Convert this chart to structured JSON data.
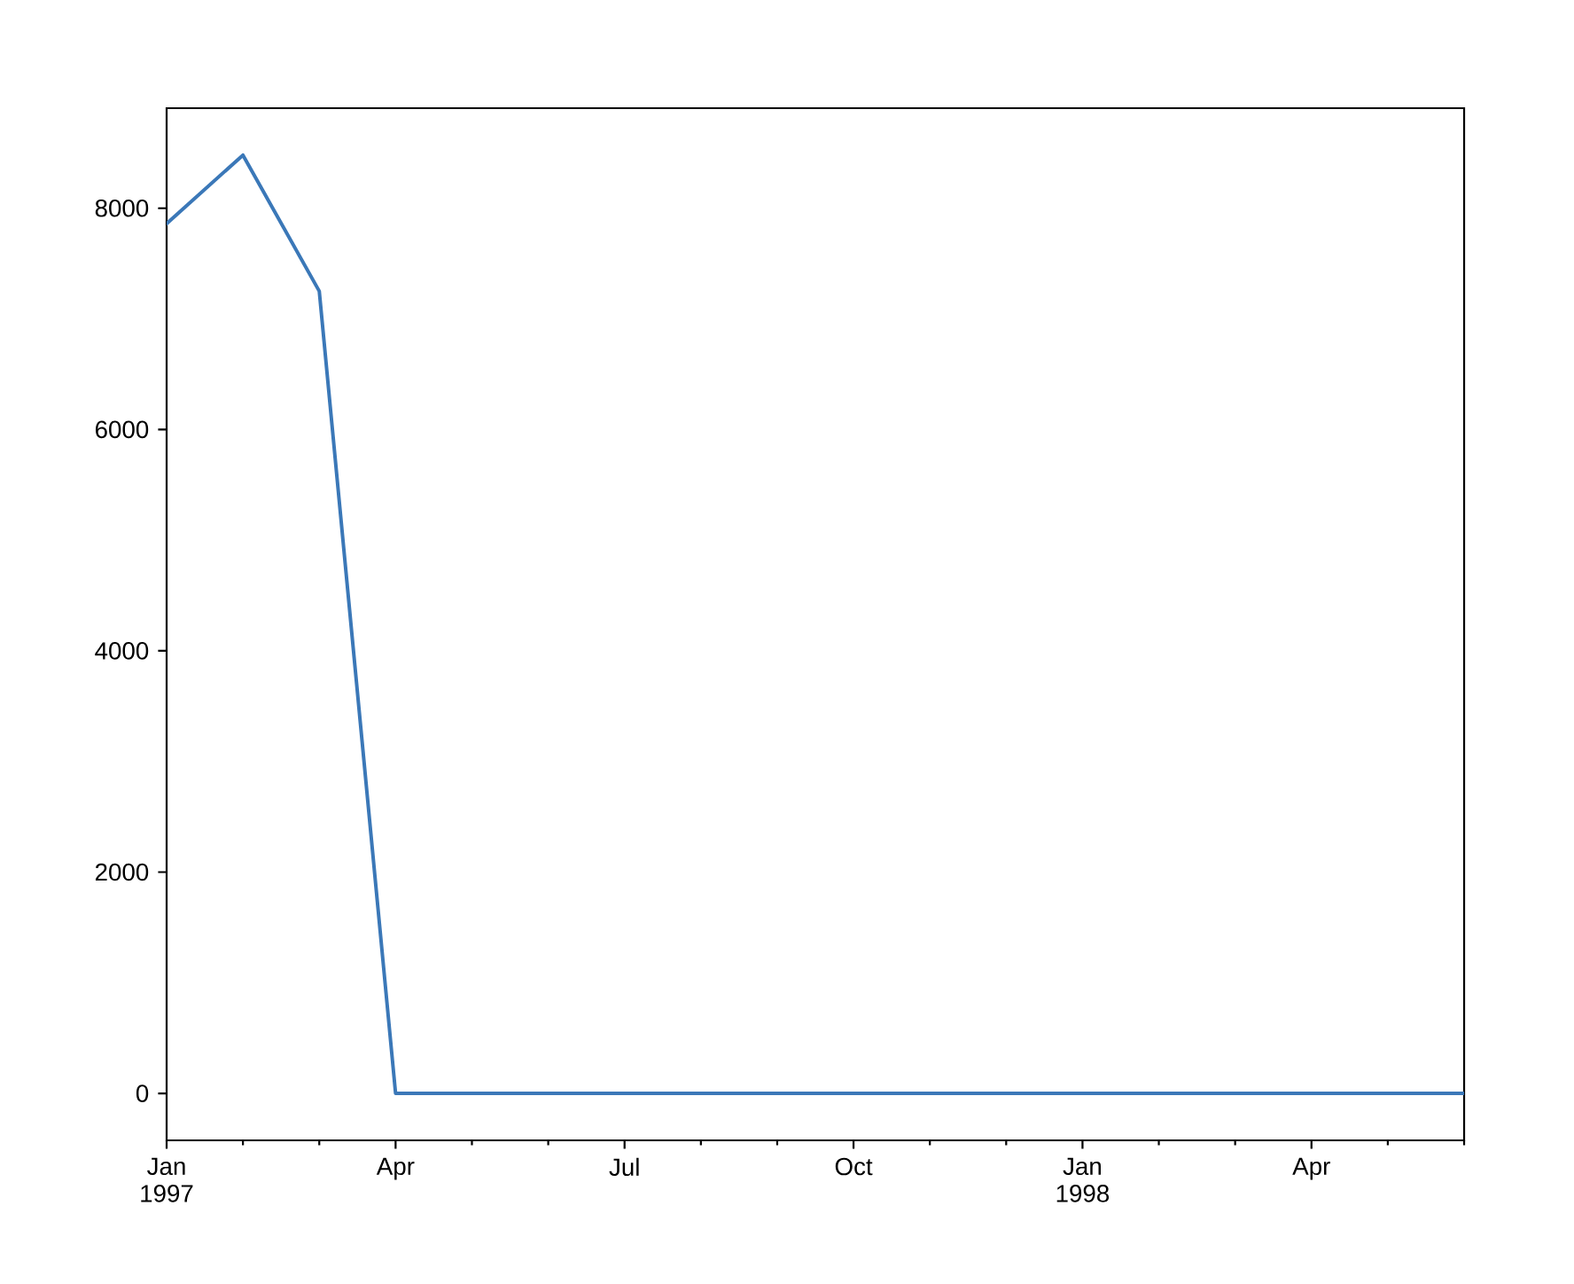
{
  "chart_data": {
    "type": "line",
    "x": [
      "1997-01",
      "1997-02",
      "1997-03",
      "1997-04",
      "1997-05",
      "1997-06",
      "1997-07",
      "1997-08",
      "1997-09",
      "1997-10",
      "1997-11",
      "1997-12",
      "1998-01",
      "1998-02",
      "1998-03",
      "1998-04",
      "1998-05",
      "1998-06"
    ],
    "values": [
      7860,
      8480,
      7250,
      0,
      0,
      0,
      0,
      0,
      0,
      0,
      0,
      0,
      0,
      0,
      0,
      0,
      0,
      0
    ],
    "color": "#3b78b8",
    "xlim": [
      "1997-01",
      "1998-06"
    ],
    "xticks": [
      {
        "value": "1997-01",
        "label": "Jan 1997"
      },
      {
        "value": "1997-02",
        "label": null
      },
      {
        "value": "1997-03",
        "label": null
      },
      {
        "value": "1997-04",
        "label": "Apr"
      },
      {
        "value": "1997-05",
        "label": null
      },
      {
        "value": "1997-06",
        "label": null
      },
      {
        "value": "1997-07",
        "label": "Jul"
      },
      {
        "value": "1997-08",
        "label": null
      },
      {
        "value": "1997-09",
        "label": null
      },
      {
        "value": "1997-10",
        "label": "Oct"
      },
      {
        "value": "1997-11",
        "label": null
      },
      {
        "value": "1997-12",
        "label": null
      },
      {
        "value": "1998-01",
        "label": "Jan 1998"
      },
      {
        "value": "1998-02",
        "label": null
      },
      {
        "value": "1998-03",
        "label": null
      },
      {
        "value": "1998-04",
        "label": "Apr"
      },
      {
        "value": "1998-05",
        "label": null
      },
      {
        "value": "1998-06",
        "label": null
      }
    ],
    "ylim": [
      -424,
      8904
    ],
    "yticks": [
      0,
      2000,
      4000,
      6000,
      8000
    ]
  }
}
